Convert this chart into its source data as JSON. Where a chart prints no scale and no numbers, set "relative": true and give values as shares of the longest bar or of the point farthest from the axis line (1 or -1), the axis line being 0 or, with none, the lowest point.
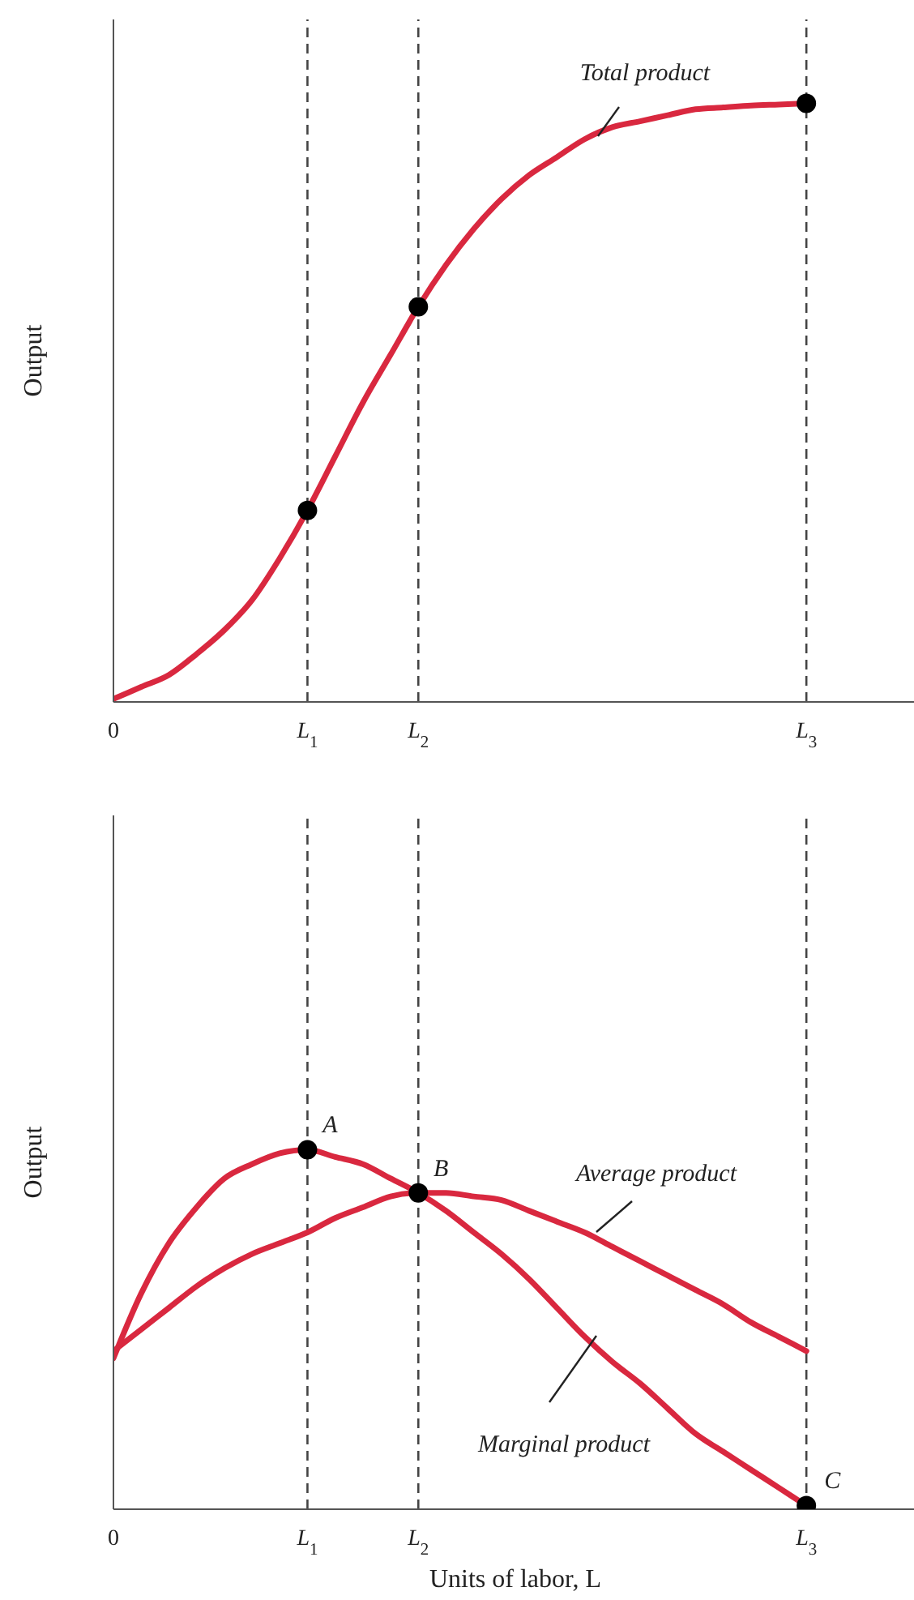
{
  "chart_data": [
    {
      "type": "line",
      "relative": true,
      "ylabel": "Output",
      "tick_labels": "x",
      "line_style": "solid",
      "categories": [
        "0",
        null,
        null,
        null,
        null,
        null,
        null,
        "L$_{1}$",
        null,
        null,
        null,
        "L$_{2}$",
        null,
        null,
        null,
        null,
        null,
        null,
        null,
        null,
        null,
        null,
        null,
        null,
        null,
        "L$_{3}$",
        null,
        null,
        null,
        null
      ],
      "series": [
        {
          "color": "#d9283f",
          "values": [
            0.005,
            0.025,
            0.045,
            0.08,
            0.12,
            0.17,
            0.24,
            0.32,
            0.41,
            0.5,
            0.58,
            0.66,
            0.73,
            0.79,
            0.84,
            0.88,
            0.91,
            0.94,
            0.96,
            0.97,
            0.98,
            0.99,
            0.993,
            0.996,
            0.998,
            1,
            null,
            null,
            null,
            null
          ]
        },
        {
          "type": "scatter",
          "color": "#000000",
          "values": [
            null,
            null,
            null,
            null,
            null,
            null,
            null,
            0.32,
            null,
            null,
            null,
            0.66,
            null,
            null,
            null,
            null,
            null,
            null,
            null,
            null,
            null,
            null,
            null,
            null,
            null,
            1,
            null,
            null,
            null,
            null
          ]
        }
      ],
      "ref_lines": [
        {
          "axis": "x",
          "value": "L$_{1}$",
          "color": "#444444",
          "line_style": "dashed"
        },
        {
          "axis": "x",
          "value": "L$_{2}$",
          "color": "#444444",
          "line_style": "dashed"
        },
        {
          "axis": "x",
          "value": "L$_{3}$",
          "color": "#444444",
          "line_style": "dashed"
        }
      ],
      "annotations": [
        "Total product"
      ]
    },
    {
      "type": "line",
      "relative": true,
      "ylabel": "Output",
      "xlabel": "Units of labor, L",
      "tick_labels": "x",
      "line_style": "solid",
      "categories": [
        "0",
        null,
        null,
        null,
        null,
        null,
        null,
        "L$_{1}$",
        null,
        null,
        null,
        "L$_{2}$",
        null,
        null,
        null,
        null,
        null,
        null,
        null,
        null,
        null,
        null,
        null,
        null,
        null,
        "L$_{3}$",
        null,
        null,
        null,
        null
      ],
      "series": [
        {
          "color": "#d9283f",
          "values": [
            0.42,
            0.6,
            0.74,
            0.84,
            0.92,
            0.96,
            0.99,
            1,
            0.98,
            0.96,
            0.92,
            0.88,
            0.83,
            0.77,
            0.71,
            0.64,
            0.56,
            0.48,
            0.41,
            0.35,
            0.28,
            0.21,
            0.16,
            0.11,
            0.06,
            0.01,
            null,
            null,
            null,
            null
          ]
        },
        {
          "color": "#d9283f",
          "values": [
            0.44,
            0.5,
            0.56,
            0.62,
            0.67,
            0.71,
            0.74,
            0.77,
            0.81,
            0.84,
            0.87,
            0.88,
            0.88,
            0.87,
            0.86,
            0.83,
            0.8,
            0.77,
            0.73,
            0.69,
            0.65,
            0.61,
            0.57,
            0.52,
            0.48,
            0.44,
            null,
            null,
            null,
            null
          ]
        },
        {
          "type": "scatter",
          "color": "#000000",
          "values": [
            null,
            null,
            null,
            null,
            null,
            null,
            null,
            1,
            null,
            null,
            null,
            0.88,
            null,
            null,
            null,
            null,
            null,
            null,
            null,
            null,
            null,
            null,
            null,
            null,
            null,
            0.01,
            null,
            null,
            null,
            null
          ]
        }
      ],
      "ref_lines": [
        {
          "axis": "x",
          "value": "L$_{1}$",
          "color": "#444444",
          "line_style": "dashed"
        },
        {
          "axis": "x",
          "value": "L$_{2}$",
          "color": "#444444",
          "line_style": "dashed"
        },
        {
          "axis": "x",
          "value": "L$_{3}$",
          "color": "#444444",
          "line_style": "dashed"
        }
      ],
      "annotations": [
        {
          "text": "A",
          "x": "L$_{1}$",
          "y": 1
        },
        {
          "text": "B",
          "x": "L$_{2}$",
          "y": 0.88
        },
        {
          "text": "C",
          "x": "L$_{3}$",
          "y": 0.01
        },
        "Average product",
        "Marginal product"
      ]
    }
  ]
}
